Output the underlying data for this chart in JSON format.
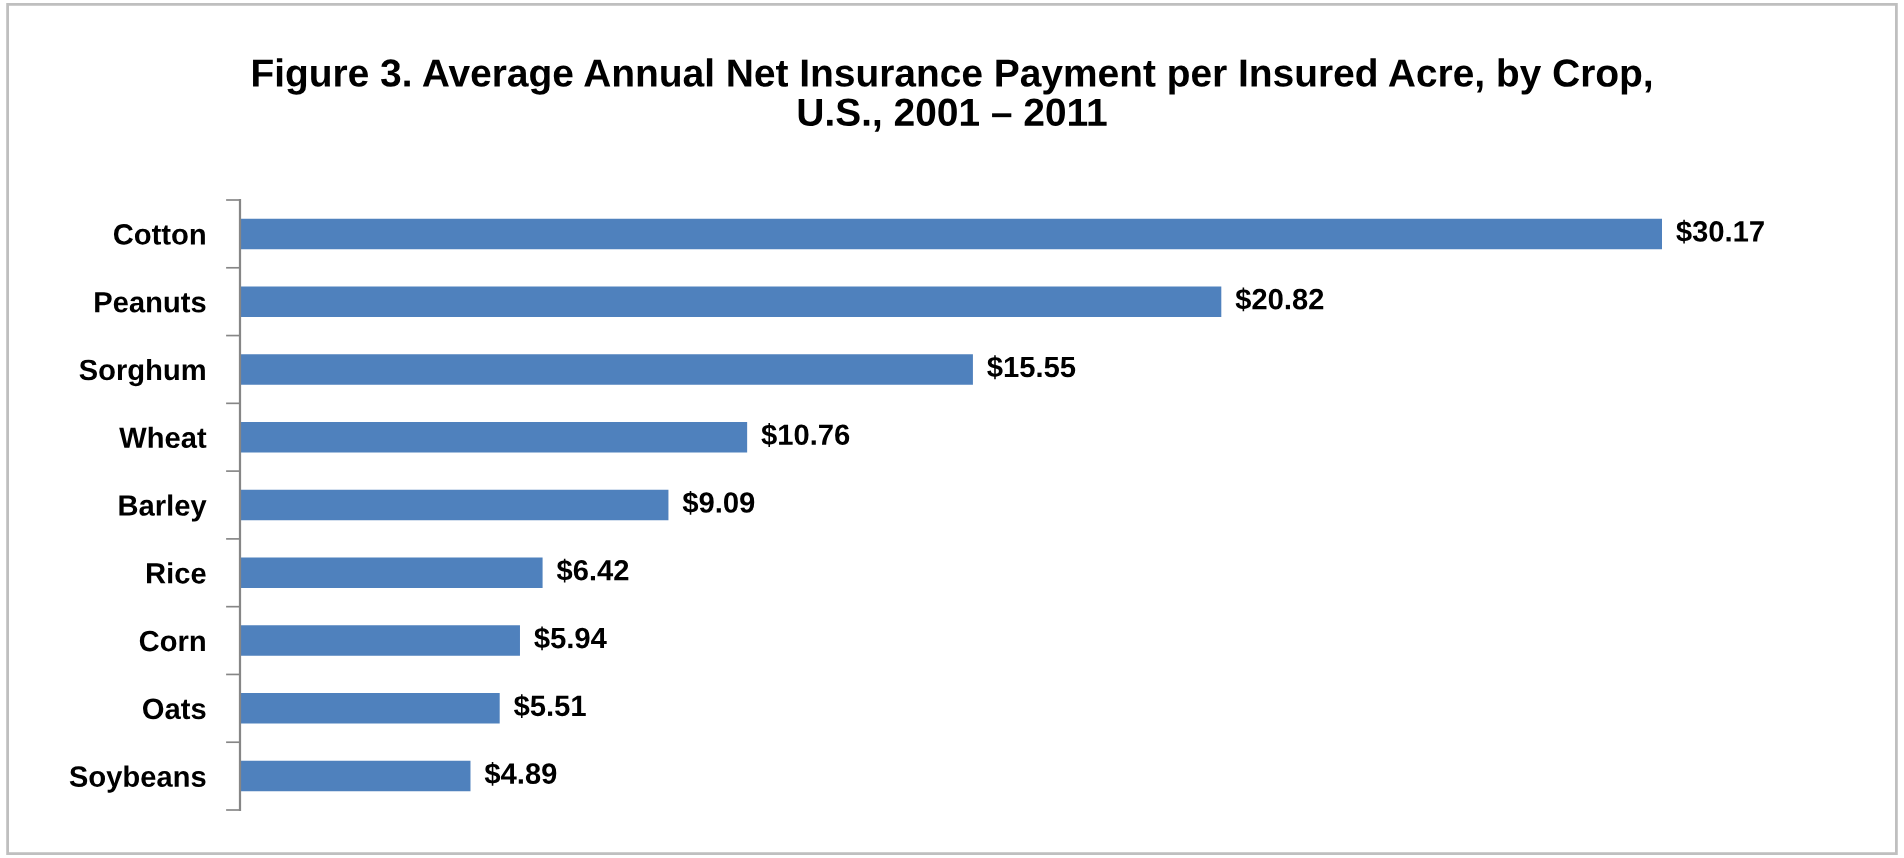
{
  "chart_data": {
    "type": "bar",
    "orientation": "horizontal",
    "title": "Figure 3. Average Annual Net Insurance Payment per Insured Acre, by Crop,\nU.S., 2001 – 2011",
    "categories": [
      "Cotton",
      "Peanuts",
      "Sorghum",
      "Wheat",
      "Barley",
      "Rice",
      "Corn",
      "Oats",
      "Soybeans"
    ],
    "values": [
      30.17,
      20.82,
      15.55,
      10.76,
      9.09,
      6.42,
      5.94,
      5.51,
      4.89
    ],
    "value_labels": [
      "$30.17",
      "$20.82",
      "$15.55",
      "$10.76",
      "$9.09",
      "$6.42",
      "$5.94",
      "$5.51",
      "$4.89"
    ],
    "color": "#4f81bd",
    "grid": false,
    "legend": false
  }
}
